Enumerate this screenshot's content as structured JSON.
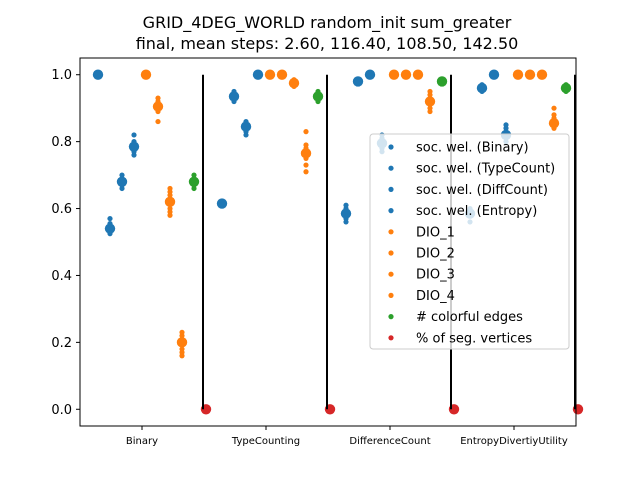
{
  "chart_data": {
    "type": "scatter",
    "title": "GRID_4DEG_WORLD random_init sum_greater",
    "subtitle": "final, mean steps: 2.60, 116.40, 108.50, 142.50",
    "xlabel": "",
    "ylabel": "",
    "ylim": [
      -0.05,
      1.05
    ],
    "yticks": [
      "0.0",
      "0.2",
      "0.4",
      "0.6",
      "0.8",
      "1.0"
    ],
    "categories": [
      "Binary",
      "TypeCounting",
      "DifferenceCount",
      "EntropyDivertiyUtility"
    ],
    "grid": false,
    "legend_position": "right",
    "series": [
      {
        "name": "soc. wel. (Binary)",
        "color": "#1f77b4",
        "means": [
          1.0,
          0.615,
          0.585,
          0.585
        ],
        "spread": [
          [
            1.0
          ],
          [
            0.61,
            0.62
          ],
          [
            0.56,
            0.57,
            0.59,
            0.6,
            0.61
          ],
          [
            0.56,
            0.58,
            0.6
          ]
        ]
      },
      {
        "name": "soc. wel. (TypeCount)",
        "color": "#1f77b4",
        "means": [
          0.54,
          0.935,
          0.98,
          0.96
        ],
        "spread": [
          [
            0.525,
            0.53,
            0.55,
            0.555,
            0.57
          ],
          [
            0.92,
            0.93,
            0.945,
            0.95
          ],
          [
            0.975,
            0.985
          ],
          [
            0.95,
            0.965,
            0.97
          ]
        ]
      },
      {
        "name": "soc. wel. (DiffCount)",
        "color": "#1f77b4",
        "means": [
          0.68,
          0.845,
          1.0,
          1.0
        ],
        "spread": [
          [
            0.66,
            0.67,
            0.69,
            0.7
          ],
          [
            0.82,
            0.83,
            0.855,
            0.86
          ],
          [
            1.0
          ],
          [
            1.0
          ]
        ]
      },
      {
        "name": "soc. wel. (Entropy)",
        "color": "#1f77b4",
        "means": [
          0.785,
          1.0,
          0.795,
          0.82
        ],
        "spread": [
          [
            0.76,
            0.77,
            0.8,
            0.82
          ],
          [
            1.0
          ],
          [
            0.77,
            0.78,
            0.81,
            0.82
          ],
          [
            0.8,
            0.84,
            0.85
          ]
        ]
      },
      {
        "name": "DIO_1",
        "color": "#ff7f0e",
        "means": [
          1.0,
          1.0,
          1.0,
          1.0
        ],
        "spread": [
          [
            1.0
          ],
          [
            1.0
          ],
          [
            1.0
          ],
          [
            1.0
          ]
        ]
      },
      {
        "name": "DIO_2",
        "color": "#ff7f0e",
        "means": [
          0.905,
          1.0,
          1.0,
          1.0
        ],
        "spread": [
          [
            0.86,
            0.89,
            0.92,
            0.93
          ],
          [
            1.0
          ],
          [
            1.0
          ],
          [
            1.0
          ]
        ]
      },
      {
        "name": "DIO_3",
        "color": "#ff7f0e",
        "means": [
          0.62,
          0.975,
          1.0,
          1.0
        ],
        "spread": [
          [
            0.58,
            0.59,
            0.6,
            0.64,
            0.65,
            0.66
          ],
          [
            0.965,
            0.985
          ],
          [
            1.0
          ],
          [
            1.0
          ]
        ]
      },
      {
        "name": "DIO_4",
        "color": "#ff7f0e",
        "means": [
          0.2,
          0.765,
          0.92,
          0.855
        ],
        "spread": [
          [
            0.16,
            0.17,
            0.18,
            0.22,
            0.23
          ],
          [
            0.71,
            0.73,
            0.75,
            0.78,
            0.79,
            0.83
          ],
          [
            0.89,
            0.9,
            0.94,
            0.95
          ],
          [
            0.84,
            0.87,
            0.88,
            0.9
          ]
        ]
      },
      {
        "name": "# colorful edges",
        "color": "#2ca02c",
        "means": [
          0.68,
          0.935,
          0.98,
          0.96
        ],
        "spread": [
          [
            0.66,
            0.67,
            0.69,
            0.7
          ],
          [
            0.92,
            0.93,
            0.945,
            0.95
          ],
          [
            0.98
          ],
          [
            0.95,
            0.965,
            0.97
          ]
        ]
      },
      {
        "name": "% of seg. vertices",
        "color": "#d62728",
        "means": [
          0.0,
          0.0,
          0.0,
          0.0
        ],
        "spread": [
          [
            0.0
          ],
          [
            0.0
          ],
          [
            0.0
          ],
          [
            0.0
          ]
        ]
      }
    ]
  }
}
